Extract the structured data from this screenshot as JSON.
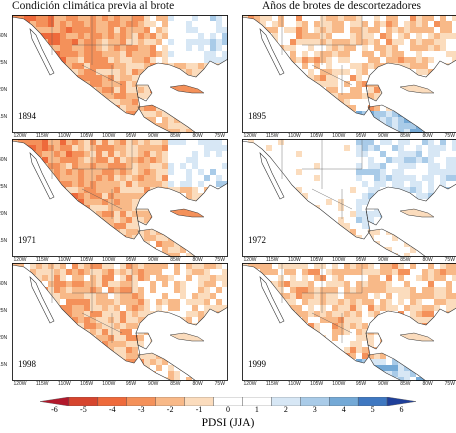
{
  "column_titles": [
    "Condición climática previa al brote",
    "Años de  brotes de descortezadores"
  ],
  "panels": [
    {
      "year": "1894",
      "col": 0,
      "row": 0,
      "theme": "dry"
    },
    {
      "year": "1895",
      "col": 1,
      "row": 0,
      "theme": "mixed"
    },
    {
      "year": "1971",
      "col": 0,
      "row": 1,
      "theme": "dry"
    },
    {
      "year": "1972",
      "col": 1,
      "row": 1,
      "theme": "wet"
    },
    {
      "year": "1998",
      "col": 0,
      "row": 2,
      "theme": "mixed-dry"
    },
    {
      "year": "1999",
      "col": 1,
      "row": 2,
      "theme": "mixed"
    }
  ],
  "lat_ticks": [
    "30N",
    "25N",
    "20N",
    "15N"
  ],
  "lon_ticks": [
    "120W",
    "115W",
    "110W",
    "105W",
    "100W",
    "95W",
    "90W",
    "85W",
    "80W",
    "75W"
  ],
  "colorbar": {
    "labels": [
      "-6",
      "-5",
      "-4",
      "-3",
      "-2",
      "-1",
      "0",
      "1",
      "2",
      "3",
      "4",
      "5",
      "6"
    ],
    "title": "PDSI (JJA)",
    "colors": [
      "#b2182b",
      "#d6452e",
      "#ee6a3b",
      "#f4915a",
      "#f8b988",
      "#fbdcbd",
      "#ffffff",
      "#ffffff",
      "#d7e7f5",
      "#a9cbe8",
      "#74a9d6",
      "#3f78c1",
      "#1f3f9a"
    ]
  }
}
